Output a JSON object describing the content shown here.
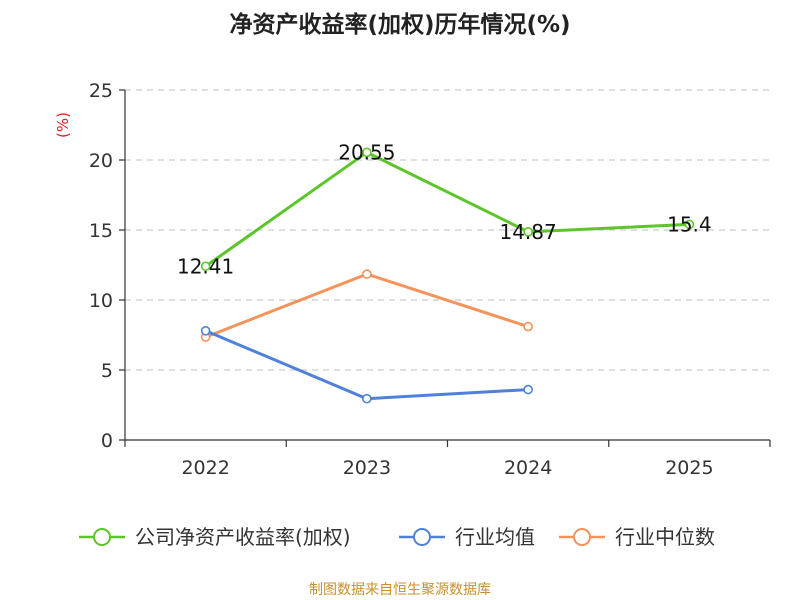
{
  "chart_data": {
    "type": "line",
    "title": "净资产收益率(加权)历年情况(%)",
    "ylabel": "(%)",
    "xlabel": "",
    "categories": [
      "2022",
      "2023",
      "2024",
      "2025"
    ],
    "ylim": [
      0,
      25
    ],
    "yticks": [
      0,
      5,
      10,
      15,
      20,
      25
    ],
    "grid": true,
    "legend_position": "bottom",
    "series": [
      {
        "name": "公司净资产收益率(加权)",
        "color": "#5cc52a",
        "values": [
          12.41,
          20.55,
          14.87,
          15.4
        ],
        "labels": [
          "12.41",
          "20.55",
          "14.87",
          "15.4"
        ]
      },
      {
        "name": "行业均值",
        "color": "#4f81d9",
        "values": [
          7.8,
          2.95,
          3.6,
          null
        ]
      },
      {
        "name": "行业中位数",
        "color": "#f4935a",
        "values": [
          7.35,
          11.85,
          8.1,
          null
        ]
      }
    ],
    "source": "制图数据来自恒生聚源数据库"
  }
}
